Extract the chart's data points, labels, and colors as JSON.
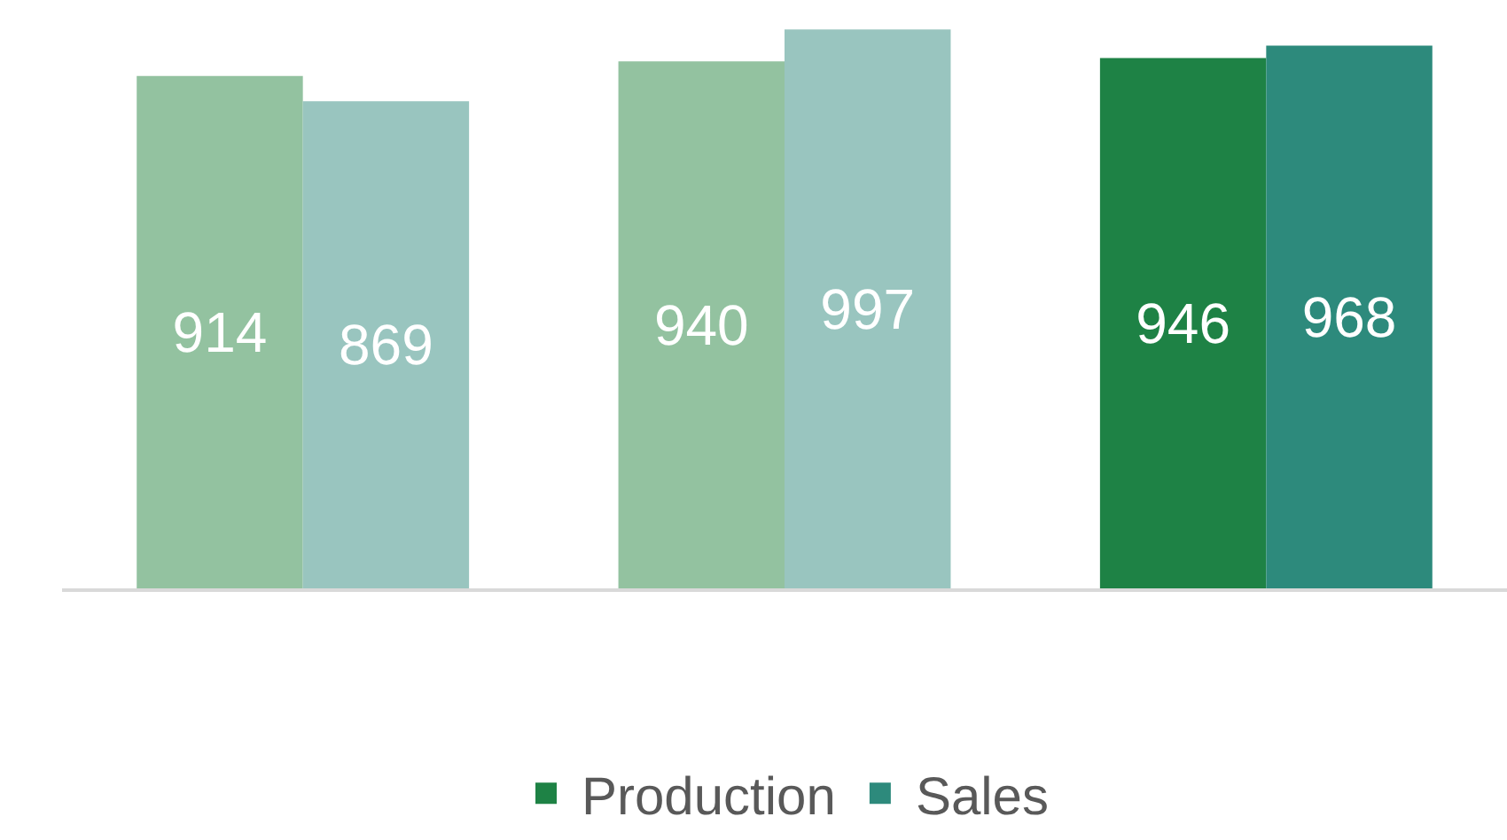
{
  "chart_data": {
    "type": "bar",
    "categories": [
      null,
      null,
      null
    ],
    "series": [
      {
        "name": "Production",
        "color": "#1e8245",
        "colors": [
          "#93c2a0",
          "#93c2a0",
          "#1e8245"
        ],
        "values": [
          914,
          940,
          946
        ]
      },
      {
        "name": "Sales",
        "color": "#2d8a7c",
        "colors": [
          "#99c5bf",
          "#99c5bf",
          "#2d8a7c"
        ],
        "values": [
          869,
          997,
          968
        ]
      }
    ],
    "data_labels": true,
    "legend": "bottom"
  }
}
